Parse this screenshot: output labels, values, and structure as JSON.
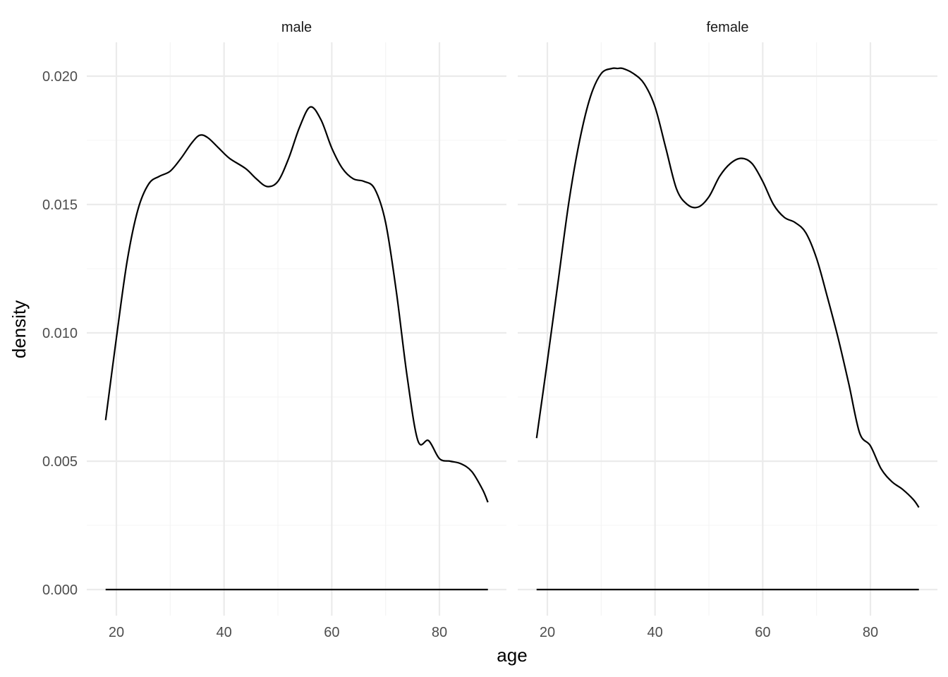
{
  "chart_data": {
    "type": "line",
    "xlabel": "age",
    "ylabel": "density",
    "xlim": [
      18,
      89
    ],
    "ylim": [
      0,
      0.0212
    ],
    "x_ticks": [
      20,
      40,
      60,
      80
    ],
    "x_tick_labels": [
      "20",
      "40",
      "60",
      "80"
    ],
    "x_minor_ticks": [
      30,
      50,
      70
    ],
    "y_ticks": [
      0,
      0.005,
      0.01,
      0.015,
      0.02
    ],
    "y_tick_labels": [
      "0.000",
      "0.005",
      "0.010",
      "0.015",
      "0.020"
    ],
    "y_minor_ticks": [
      0.0025,
      0.0075,
      0.0125,
      0.0175
    ],
    "grid": true,
    "line_color": "#000000",
    "panels": [
      {
        "label": "male",
        "x": [
          18,
          20,
          22,
          24,
          26,
          28,
          30,
          32,
          34,
          35.5,
          37,
          39,
          41,
          44,
          46,
          48,
          50,
          52,
          54,
          56,
          58,
          60,
          62,
          64,
          66,
          68,
          70,
          72,
          74,
          76,
          78,
          80,
          82,
          84,
          86,
          88,
          89
        ],
        "values": [
          0.0066,
          0.0098,
          0.0128,
          0.0148,
          0.0158,
          0.0161,
          0.0163,
          0.0168,
          0.0174,
          0.0177,
          0.0176,
          0.0172,
          0.0168,
          0.0164,
          0.016,
          0.0157,
          0.0159,
          0.0168,
          0.018,
          0.0188,
          0.0183,
          0.0172,
          0.0164,
          0.016,
          0.0159,
          0.0156,
          0.0143,
          0.0116,
          0.0083,
          0.0058,
          0.0058,
          0.0051,
          0.005,
          0.0049,
          0.0046,
          0.0039,
          0.0034
        ]
      },
      {
        "label": "female",
        "x": [
          18,
          20,
          22,
          24,
          26,
          28,
          30,
          32,
          33,
          34,
          36,
          38,
          40,
          42,
          44,
          46,
          48,
          50,
          52,
          54,
          56,
          58,
          60,
          62,
          64,
          66,
          68,
          70,
          72,
          74,
          76,
          78,
          80,
          82,
          84,
          86,
          88,
          89
        ],
        "values": [
          0.0059,
          0.0089,
          0.012,
          0.0151,
          0.0175,
          0.0192,
          0.0201,
          0.0203,
          0.0203,
          0.0203,
          0.0201,
          0.0197,
          0.0188,
          0.0172,
          0.0156,
          0.015,
          0.0149,
          0.0153,
          0.0161,
          0.0166,
          0.0168,
          0.0166,
          0.0159,
          0.015,
          0.0145,
          0.0143,
          0.0139,
          0.0129,
          0.0114,
          0.0098,
          0.008,
          0.0061,
          0.0056,
          0.0047,
          0.0042,
          0.0039,
          0.0035,
          0.0032
        ]
      }
    ]
  }
}
